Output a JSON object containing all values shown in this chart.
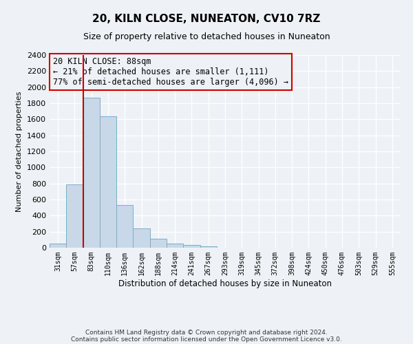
{
  "title": "20, KILN CLOSE, NUNEATON, CV10 7RZ",
  "subtitle": "Size of property relative to detached houses in Nuneaton",
  "xlabel": "Distribution of detached houses by size in Nuneaton",
  "ylabel": "Number of detached properties",
  "bar_values": [
    50,
    790,
    1870,
    1640,
    530,
    240,
    110,
    50,
    35,
    20,
    0,
    0,
    0,
    0,
    0,
    0,
    0,
    0,
    0,
    0,
    0
  ],
  "bar_labels": [
    "31sqm",
    "57sqm",
    "83sqm",
    "110sqm",
    "136sqm",
    "162sqm",
    "188sqm",
    "214sqm",
    "241sqm",
    "267sqm",
    "293sqm",
    "319sqm",
    "345sqm",
    "372sqm",
    "398sqm",
    "424sqm",
    "450sqm",
    "476sqm",
    "503sqm",
    "529sqm",
    "555sqm"
  ],
  "ylim": [
    0,
    2400
  ],
  "yticks": [
    0,
    200,
    400,
    600,
    800,
    1000,
    1200,
    1400,
    1600,
    1800,
    2000,
    2200,
    2400
  ],
  "bar_color_fill": "#c8d8e8",
  "bar_color_edge": "#7aabcc",
  "vline_x": 2,
  "vline_color": "#cc0000",
  "annotation_title": "20 KILN CLOSE: 88sqm",
  "annotation_line1": "← 21% of detached houses are smaller (1,111)",
  "annotation_line2": "77% of semi-detached houses are larger (4,096) →",
  "annotation_box_color": "#cc0000",
  "bg_color": "#eef2f6",
  "grid_color": "#ffffff",
  "footer1": "Contains HM Land Registry data © Crown copyright and database right 2024.",
  "footer2": "Contains public sector information licensed under the Open Government Licence v3.0."
}
